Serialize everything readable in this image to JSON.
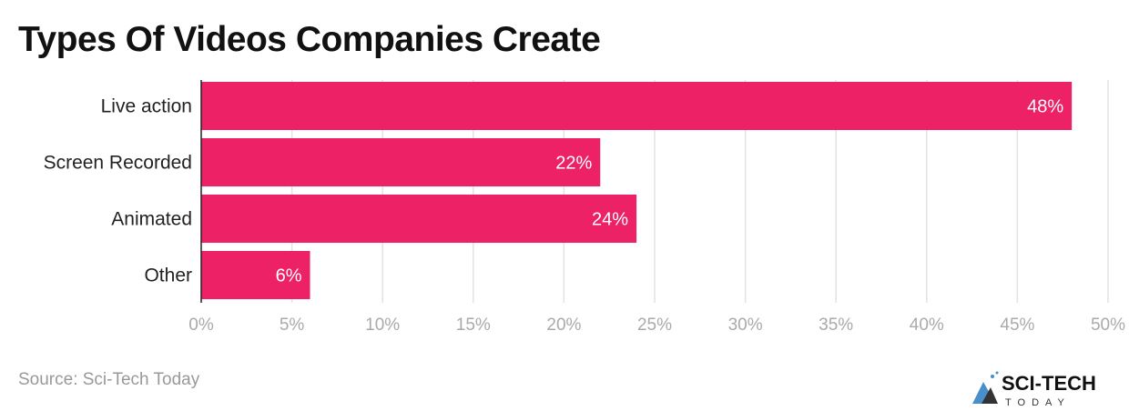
{
  "title": "Types Of Videos Companies Create",
  "source": "Source: Sci-Tech Today",
  "logo_text": "SCI-TECH TODAY",
  "chart_data": {
    "type": "bar",
    "orientation": "horizontal",
    "title": "Types Of Videos Companies Create",
    "categories": [
      "Live action",
      "Screen Recorded",
      "Animated",
      "Other"
    ],
    "values": [
      48,
      22,
      24,
      6
    ],
    "value_labels": [
      "48%",
      "22%",
      "24%",
      "6%"
    ],
    "xlim": [
      0,
      50
    ],
    "xticks": [
      0,
      5,
      10,
      15,
      20,
      25,
      30,
      35,
      40,
      45,
      50
    ],
    "xtick_labels": [
      "0%",
      "5%",
      "10%",
      "15%",
      "20%",
      "25%",
      "30%",
      "35%",
      "40%",
      "45%",
      "50%"
    ],
    "grid": true,
    "bar_color": "#ec2166"
  }
}
